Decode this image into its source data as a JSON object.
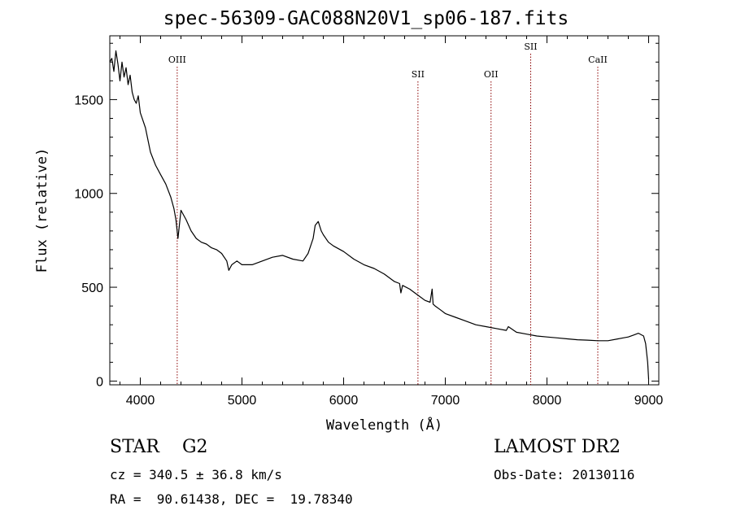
{
  "title": "spec-56309-GAC088N20V1_sp06-187.fits",
  "info": {
    "object_class": "STAR",
    "subclass": "G2",
    "survey": "LAMOST DR2",
    "cz_text": "cz = 340.5 ± 36.8 km/s",
    "obs_date_text": "Obs-Date: 20130116",
    "radec_text": "RA =  90.61438, DEC =  19.78340"
  },
  "chart_data": {
    "type": "line",
    "title": "spec-56309-GAC088N20V1_sp06-187.fits",
    "xlabel": "Wavelength (Å)",
    "ylabel": "Flux (relative)",
    "xlim": [
      3700,
      9100
    ],
    "ylim": [
      -20,
      1840
    ],
    "xticks": [
      4000,
      5000,
      6000,
      7000,
      8000,
      9000
    ],
    "yticks": [
      0,
      500,
      1000,
      1500
    ],
    "line_color": "#000000",
    "marker_color": "#8b0000",
    "lines": [
      {
        "label": "OIII",
        "x": 4363,
        "level": 3
      },
      {
        "label": "SII",
        "x": 6731,
        "level": 2
      },
      {
        "label": "OII",
        "x": 7450,
        "level": 2
      },
      {
        "label": "SII",
        "x": 7840,
        "level": 1
      },
      {
        "label": "CaII",
        "x": 8500,
        "level": 3
      }
    ],
    "series": [
      {
        "x": [
          3700,
          3720,
          3740,
          3760,
          3780,
          3800,
          3820,
          3840,
          3860,
          3880,
          3900,
          3920,
          3940,
          3960,
          3980,
          4000,
          4050,
          4100,
          4150,
          4200,
          4250,
          4300,
          4330,
          4350,
          4370,
          4400,
          4450,
          4500,
          4550,
          4600,
          4650,
          4700,
          4750,
          4800,
          4850,
          4870,
          4900,
          4950,
          5000,
          5100,
          5200,
          5300,
          5400,
          5500,
          5600,
          5650,
          5700,
          5720,
          5750,
          5780,
          5800,
          5850,
          5900,
          6000,
          6100,
          6200,
          6300,
          6400,
          6500,
          6550,
          6563,
          6580,
          6650,
          6700,
          6750,
          6800,
          6850,
          6870,
          6880,
          6900,
          6950,
          7000,
          7100,
          7200,
          7300,
          7400,
          7500,
          7600,
          7620,
          7700,
          7800,
          7900,
          8000,
          8100,
          8200,
          8300,
          8400,
          8500,
          8600,
          8700,
          8750,
          8800,
          8850,
          8900,
          8950,
          8970,
          8990,
          9000
        ],
        "y": [
          1700,
          1720,
          1650,
          1760,
          1690,
          1600,
          1700,
          1620,
          1670,
          1580,
          1630,
          1540,
          1500,
          1480,
          1520,
          1430,
          1350,
          1220,
          1150,
          1100,
          1050,
          980,
          920,
          860,
          760,
          910,
          860,
          800,
          760,
          740,
          730,
          710,
          700,
          680,
          640,
          590,
          620,
          640,
          620,
          620,
          640,
          660,
          670,
          650,
          640,
          680,
          760,
          830,
          850,
          800,
          780,
          740,
          720,
          690,
          650,
          620,
          600,
          570,
          530,
          520,
          470,
          510,
          490,
          470,
          450,
          430,
          420,
          490,
          410,
          400,
          380,
          360,
          340,
          320,
          300,
          290,
          280,
          270,
          290,
          260,
          250,
          240,
          235,
          230,
          225,
          220,
          218,
          215,
          215,
          225,
          230,
          235,
          245,
          255,
          240,
          200,
          100,
          10
        ]
      }
    ]
  }
}
